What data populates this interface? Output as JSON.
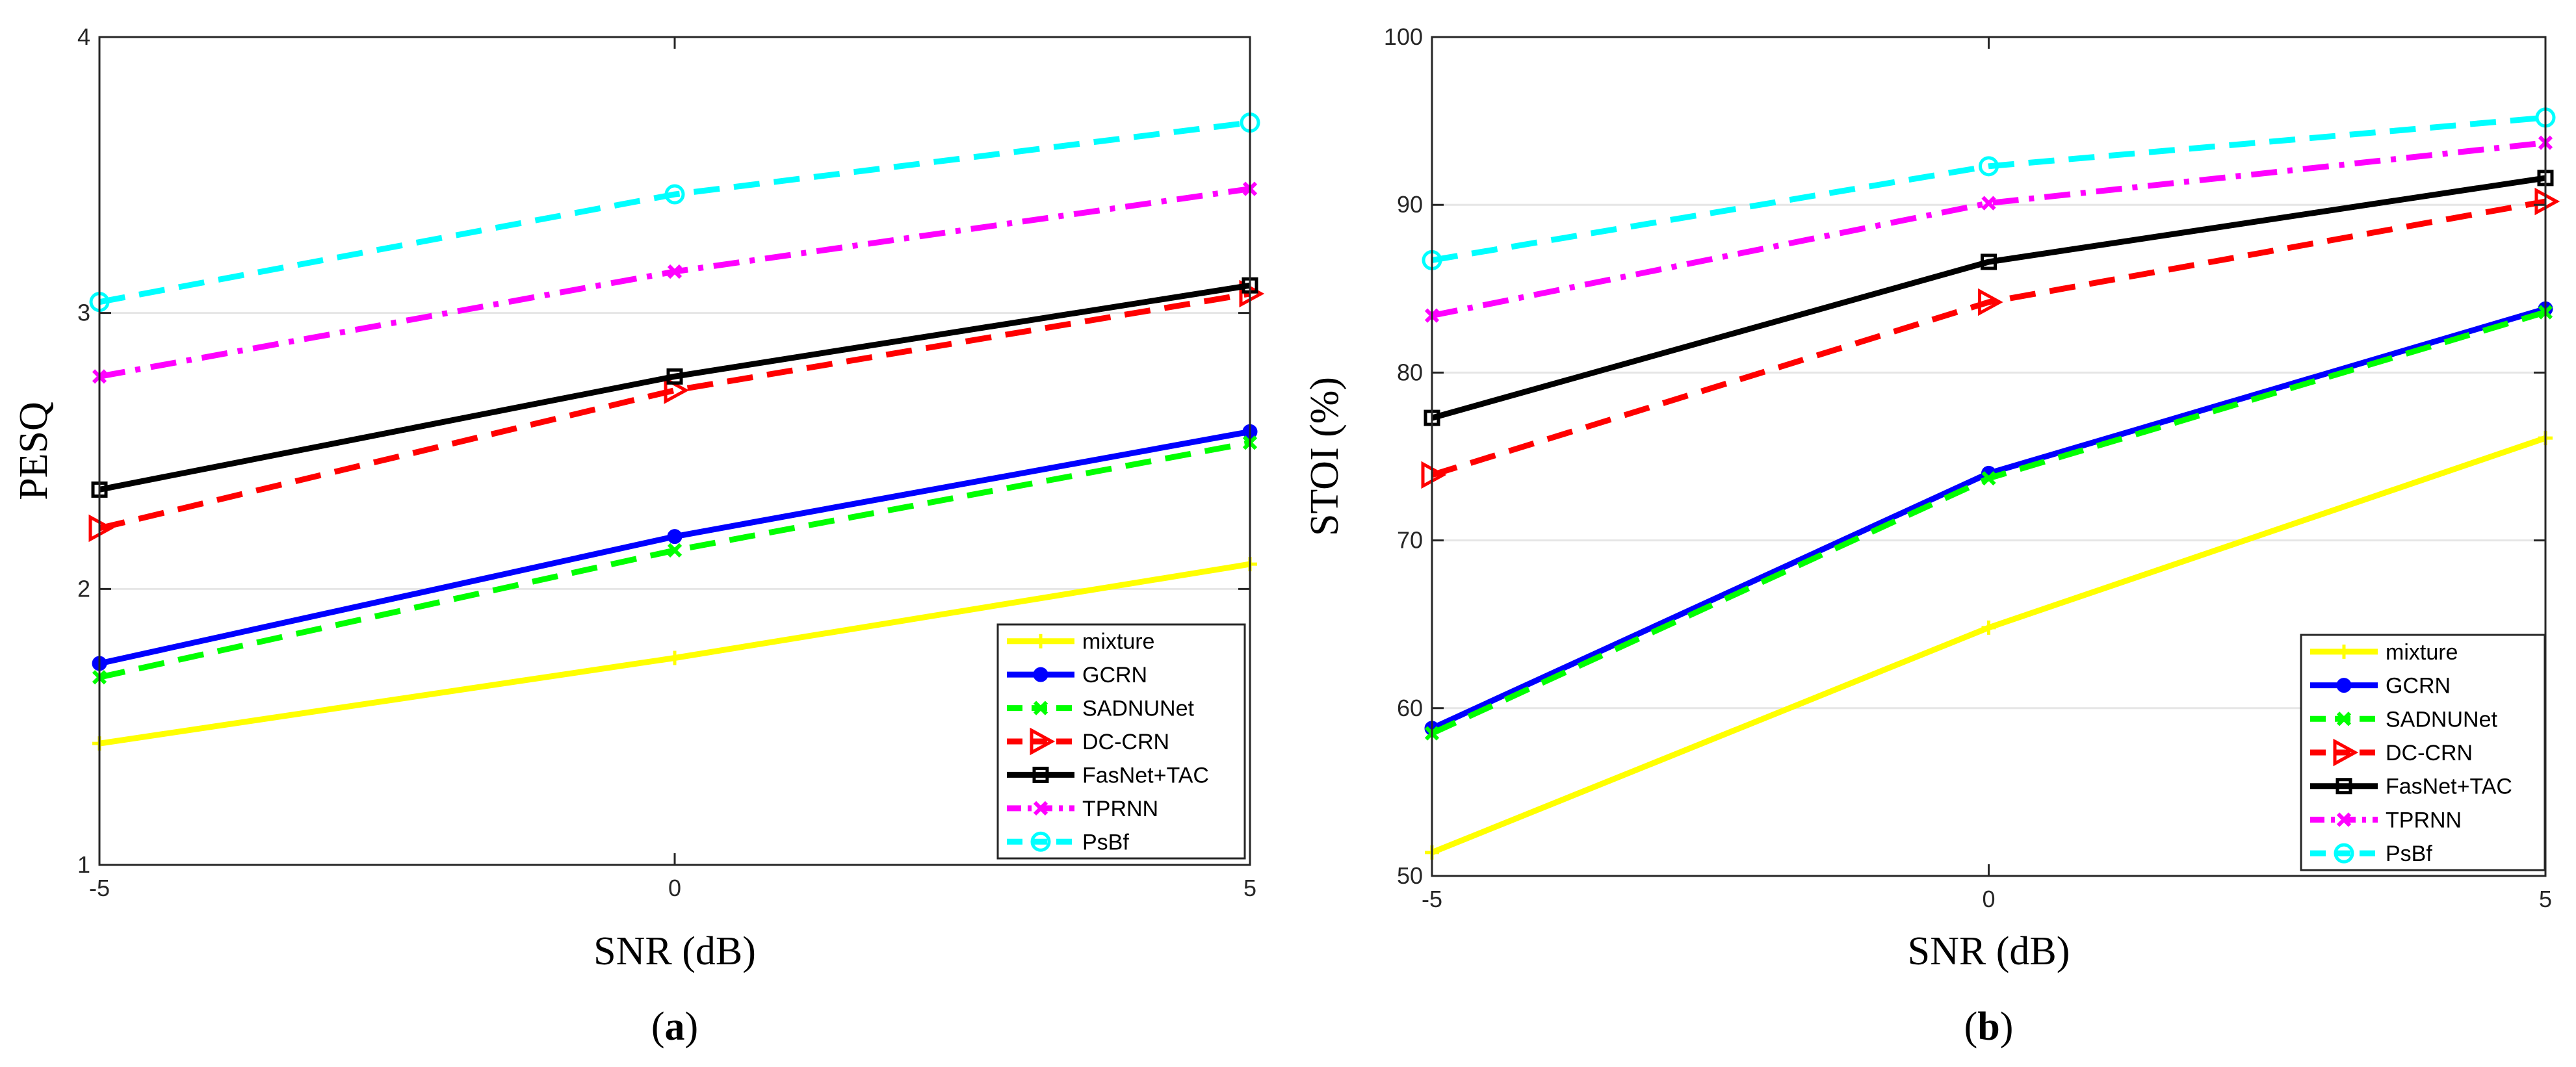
{
  "chart_data": [
    {
      "type": "line",
      "caption": "a",
      "xlabel": "SNR (dB)",
      "ylabel": "PESQ",
      "x": [
        -5,
        0,
        5
      ],
      "xlim": [
        -5,
        5
      ],
      "ylim": [
        1,
        4
      ],
      "xticks": [
        "-5",
        "0",
        "5"
      ],
      "yticks": [
        "1",
        "2",
        "3",
        "4"
      ],
      "grid": "horizontal",
      "legend_position": "bottom-right",
      "series": [
        {
          "name": "mixture",
          "color": "#ffff00",
          "dash": "solid",
          "marker": "plus",
          "values": [
            1.44,
            1.75,
            2.09
          ]
        },
        {
          "name": "GCRN",
          "color": "#0000ff",
          "dash": "solid",
          "marker": "dot",
          "values": [
            1.73,
            2.19,
            2.57
          ]
        },
        {
          "name": "SADNUNet",
          "color": "#00ff00",
          "dash": "dashed",
          "marker": "x",
          "values": [
            1.68,
            2.14,
            2.53
          ]
        },
        {
          "name": "DC-CRN",
          "color": "#ff0000",
          "dash": "dashed",
          "marker": "triangle-right",
          "values": [
            2.22,
            2.72,
            3.07
          ]
        },
        {
          "name": "FasNet+TAC",
          "color": "#000000",
          "dash": "solid",
          "marker": "square",
          "values": [
            2.36,
            2.77,
            3.1
          ]
        },
        {
          "name": "TPRNN",
          "color": "#ff00ff",
          "dash": "dashdot",
          "marker": "x",
          "values": [
            2.77,
            3.15,
            3.45
          ]
        },
        {
          "name": "PsBf",
          "color": "#00ffff",
          "dash": "dashed",
          "marker": "circle",
          "values": [
            3.04,
            3.43,
            3.69
          ]
        }
      ]
    },
    {
      "type": "line",
      "caption": "b",
      "xlabel": "SNR (dB)",
      "ylabel": "STOI (%)",
      "x": [
        -5,
        0,
        5
      ],
      "xlim": [
        -5,
        5
      ],
      "ylim": [
        50,
        100
      ],
      "xticks": [
        "-5",
        "0",
        "5"
      ],
      "yticks": [
        "50",
        "60",
        "70",
        "80",
        "90",
        "100"
      ],
      "grid": "horizontal",
      "legend_position": "bottom-right",
      "series": [
        {
          "name": "mixture",
          "color": "#ffff00",
          "dash": "solid",
          "marker": "plus",
          "values": [
            51.4,
            64.8,
            76.1
          ]
        },
        {
          "name": "GCRN",
          "color": "#0000ff",
          "dash": "solid",
          "marker": "dot",
          "values": [
            58.8,
            74.0,
            83.8
          ]
        },
        {
          "name": "SADNUNet",
          "color": "#00ff00",
          "dash": "dashed",
          "marker": "x",
          "values": [
            58.5,
            73.7,
            83.6
          ]
        },
        {
          "name": "DC-CRN",
          "color": "#ff0000",
          "dash": "dashed",
          "marker": "triangle-right",
          "values": [
            73.9,
            84.2,
            90.2
          ]
        },
        {
          "name": "FasNet+TAC",
          "color": "#000000",
          "dash": "solid",
          "marker": "square",
          "values": [
            77.3,
            86.6,
            91.6
          ]
        },
        {
          "name": "TPRNN",
          "color": "#ff00ff",
          "dash": "dashdot",
          "marker": "x",
          "values": [
            83.4,
            90.1,
            93.7
          ]
        },
        {
          "name": "PsBf",
          "color": "#00ffff",
          "dash": "dashed",
          "marker": "circle",
          "values": [
            86.7,
            92.3,
            95.2
          ]
        }
      ]
    }
  ]
}
